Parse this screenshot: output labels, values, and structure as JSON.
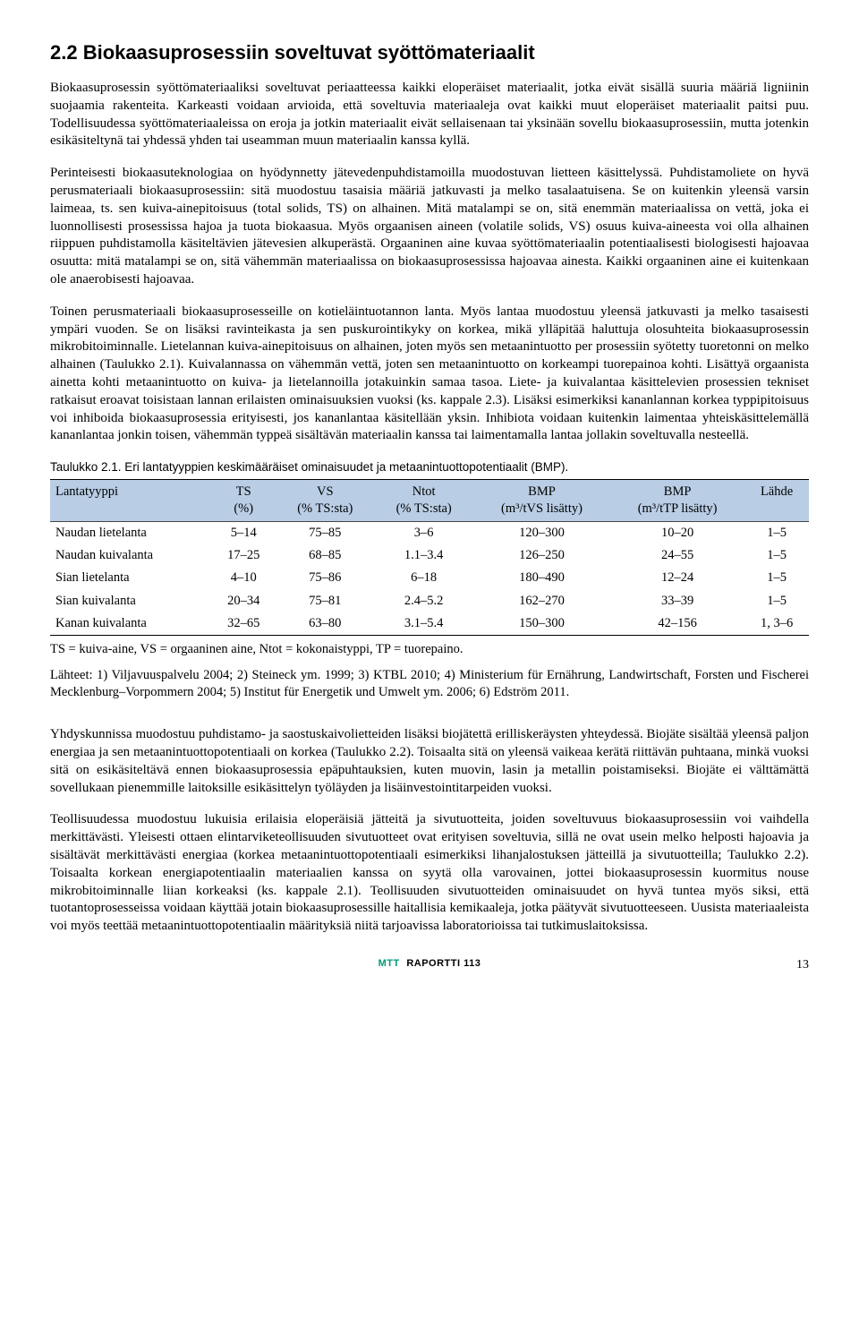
{
  "heading": "2.2 Biokaasuprosessiin soveltuvat syöttömateriaalit",
  "paragraphs": {
    "p1": "Biokaasuprosessin syöttömateriaaliksi soveltuvat periaatteessa kaikki eloperäiset materiaalit, jotka eivät sisällä suuria määriä ligniinin suojaamia rakenteita. Karkeasti voidaan arvioida, että soveltuvia materiaaleja ovat kaikki muut eloperäiset materiaalit paitsi puu. Todellisuudessa syöttömateriaaleissa on eroja ja jotkin materiaalit eivät sellaisenaan tai yksinään sovellu biokaasuprosessiin, mutta jotenkin esikäsiteltynä tai yhdessä yhden tai useamman muun materiaalin kanssa kyllä.",
    "p2": "Perinteisesti biokaasuteknologiaa on hyödynnetty jätevedenpuhdistamoilla muodostuvan lietteen käsittelyssä. Puhdistamoliete on hyvä perusmateriaali biokaasuprosessiin: sitä muodostuu tasaisia määriä jatkuvasti ja melko tasalaatuisena. Se on kuitenkin yleensä varsin laimeaa, ts. sen kuiva-ainepitoisuus (total solids, TS) on alhainen. Mitä matalampi se on, sitä enemmän materiaalissa on vettä, joka ei luonnollisesti prosessissa hajoa ja tuota biokaasua. Myös orgaanisen aineen (volatile solids, VS) osuus kuiva-aineesta voi olla alhainen riippuen puhdistamolla käsiteltävien jätevesien alkuperästä. Orgaaninen aine kuvaa syöttömateriaalin potentiaalisesti biologisesti hajoavaa osuutta: mitä matalampi se on, sitä vähemmän materiaalissa on biokaasuprosessissa hajoavaa ainesta. Kaikki orgaaninen aine ei kuitenkaan ole anaerobisesti hajoavaa.",
    "p3": "Toinen perusmateriaali biokaasuprosesseille on kotieläintuotannon lanta. Myös lantaa muodostuu yleensä jatkuvasti ja melko tasaisesti ympäri vuoden. Se on lisäksi ravinteikasta ja sen puskurointikyky on korkea, mikä ylläpitää haluttuja olosuhteita biokaasuprosessin mikrobitoiminnalle. Lietelannan kuiva-ainepitoisuus on alhainen, joten myös sen metaanintuotto per prosessiin syötetty tuoretonni on melko alhainen (Taulukko 2.1). Kuivalannassa on vähemmän vettä, joten sen metaanintuotto on korkeampi tuorepainoa kohti. Lisättyä orgaanista ainetta kohti metaanintuotto on kuiva- ja lietelannoilla jotakuinkin samaa tasoa. Liete- ja kuivalantaa käsittelevien prosessien tekniset ratkaisut eroavat toisistaan lannan erilaisten ominaisuuksien vuoksi (ks. kappale 2.3). Lisäksi esimerkiksi kananlannan korkea typpipitoisuus voi inhiboida biokaasuprosessia erityisesti, jos kananlantaa käsitellään yksin. Inhibiota voidaan kuitenkin laimentaa yhteiskäsittelemällä kananlantaa jonkin toisen, vähemmän typpeä sisältävän materiaalin kanssa tai laimentamalla lantaa jollakin soveltuvalla nesteellä.",
    "p4": "Yhdyskunnissa muodostuu puhdistamo- ja saostuskaivolietteiden lisäksi biojätettä erilliskeräysten yhteydessä. Biojäte sisältää yleensä paljon energiaa ja sen metaanintuottopotentiaali on korkea (Taulukko 2.2). Toisaalta sitä on yleensä vaikeaa kerätä riittävän puhtaana, minkä vuoksi sitä on esikäsiteltävä ennen biokaasuprosessia epäpuhtauksien, kuten muovin, lasin ja metallin poistamiseksi. Biojäte ei välttämättä sovellukaan pienemmille laitoksille esikäsittelyn työläyden ja lisäinvestointitarpeiden vuoksi.",
    "p5": "Teollisuudessa muodostuu lukuisia erilaisia eloperäisiä jätteitä ja sivutuotteita, joiden soveltuvuus biokaasuprosessiin voi vaihdella merkittävästi. Yleisesti ottaen elintarviketeollisuuden sivutuotteet ovat erityisen soveltuvia, sillä ne ovat usein melko helposti hajoavia ja sisältävät merkittävästi energiaa (korkea metaanintuottopotentiaali esimerkiksi lihanjalostuksen jätteillä ja sivutuotteilla; Taulukko 2.2). Toisaalta korkean energiapotentiaalin materiaalien kanssa on syytä olla varovainen, jottei biokaasuprosessin kuormitus nouse mikrobitoiminnalle liian korkeaksi (ks. kappale 2.1). Teollisuuden sivutuotteiden ominaisuudet on hyvä tuntea myös siksi, että tuotantoprosesseissa voidaan käyttää jotain biokaasuprosessille haitallisia kemikaaleja, jotka päätyvät sivutuotteeseen. Uusista materiaaleista voi myös teettää metaanintuottopotentiaalin määrityksiä niitä tarjoavissa laboratorioissa tai tutkimuslaitoksissa."
  },
  "table": {
    "caption": "Taulukko 2.1. Eri lantatyyppien keskimääräiset ominaisuudet ja metaanintuottopotentiaalit (BMP).",
    "headers": {
      "c0a": "Lantatyyppi",
      "c1a": "TS",
      "c1b": "(%)",
      "c2a": "VS",
      "c2b": "(% TS:sta)",
      "c3a": "Ntot",
      "c3b": "(% TS:sta)",
      "c4a": "BMP",
      "c4b": "(m³/tVS lisätty)",
      "c5a": "BMP",
      "c5b": "(m³/tTP lisätty)",
      "c6a": "Lähde"
    },
    "rows": [
      {
        "name": "Naudan lietelanta",
        "ts": "5–14",
        "vs": "75–85",
        "ntot": "3–6",
        "bmp1": "120–300",
        "bmp2": "10–20",
        "src": "1–5"
      },
      {
        "name": "Naudan kuivalanta",
        "ts": "17–25",
        "vs": "68–85",
        "ntot": "1.1–3.4",
        "bmp1": "126–250",
        "bmp2": "24–55",
        "src": "1–5"
      },
      {
        "name": "Sian lietelanta",
        "ts": "4–10",
        "vs": "75–86",
        "ntot": "6–18",
        "bmp1": "180–490",
        "bmp2": "12–24",
        "src": "1–5"
      },
      {
        "name": "Sian kuivalanta",
        "ts": "20–34",
        "vs": "75–81",
        "ntot": "2.4–5.2",
        "bmp1": "162–270",
        "bmp2": "33–39",
        "src": "1–5"
      },
      {
        "name": "Kanan kuivalanta",
        "ts": "32–65",
        "vs": "63–80",
        "ntot": "3.1–5.4",
        "bmp1": "150–300",
        "bmp2": "42–156",
        "src": "1, 3–6"
      }
    ],
    "footnote": "TS = kuiva-aine, VS = orgaaninen aine, Ntot = kokonaistyppi, TP = tuorepaino.",
    "sources": "Lähteet: 1) Viljavuuspalvelu 2004; 2) Steineck ym. 1999; 3) KTBL 2010; 4) Ministerium für Ernährung, Landwirtschaft, Forsten und Fischerei Mecklenburg–Vorpommern 2004; 5) Institut für Energetik und Umwelt ym. 2006; 6) Edström 2011."
  },
  "footer": {
    "brand": "MTT",
    "series": "RAPORTTI 113",
    "page": "13"
  }
}
